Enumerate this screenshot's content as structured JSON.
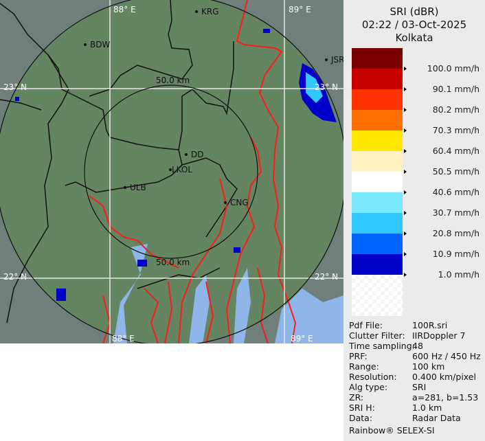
{
  "header": {
    "product": "SRI (dBR)",
    "datetime": "02:22 / 03-Oct-2025",
    "site": "Kolkata"
  },
  "legend": {
    "colors": [
      "#7a0000",
      "#c80000",
      "#ff3200",
      "#ff6e00",
      "#ffe600",
      "#fff2c0",
      "#ffffff",
      "#78e8ff",
      "#30c8ff",
      "#0064ff",
      "#0000c8"
    ],
    "labels": [
      "100.0 mm/h",
      "90.1 mm/h",
      "80.2 mm/h",
      "70.3 mm/h",
      "60.4 mm/h",
      "50.5 mm/h",
      "40.6 mm/h",
      "30.7 mm/h",
      "20.8 mm/h",
      "10.9 mm/h",
      "1.0 mm/h"
    ]
  },
  "info": [
    {
      "k": "Pdf File:",
      "v": "100R.sri"
    },
    {
      "k": "Clutter Filter:",
      "v": "IIRDoppler 7"
    },
    {
      "k": "Time sampling:",
      "v": "48"
    },
    {
      "k": "PRF:",
      "v": "600 Hz / 450 Hz"
    },
    {
      "k": "Range:",
      "v": "100 km"
    },
    {
      "k": "Resolution:",
      "v": "0.400 km/pixel"
    },
    {
      "k": "Alg type:",
      "v": "SRI"
    },
    {
      "k": "ZR:",
      "v": "a=281, b=1.53"
    },
    {
      "k": "SRI H:",
      "v": "1.0 km"
    },
    {
      "k": "Data:",
      "v": "Radar Data"
    }
  ],
  "footer": "Rainbow® SELEX-SI",
  "map": {
    "grid_labels": {
      "lon1": "88° E",
      "lon2": "89° E",
      "lat1": "23° N",
      "lat2": "22° N"
    },
    "range_labels": {
      "inner": "50.0 km"
    },
    "cities": [
      "KRG",
      "BDW",
      "JSR",
      "DD",
      "LKOL",
      "ULB",
      "CNG"
    ]
  }
}
